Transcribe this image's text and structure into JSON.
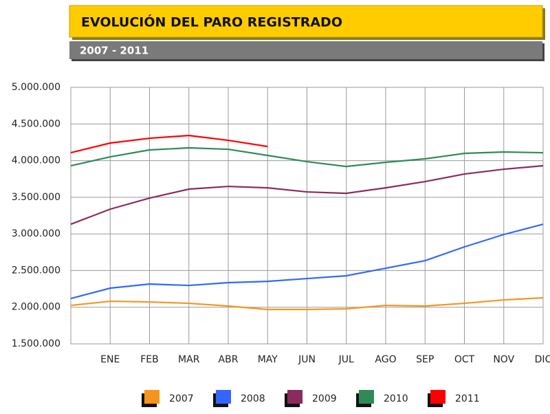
{
  "chart_data": {
    "type": "line",
    "title": "EVOLUCIÓN DEL PARO REGISTRADO",
    "subtitle": "2007 - 2011",
    "categories": [
      null,
      "ENE",
      "FEB",
      "MAR",
      "ABR",
      "MAY",
      "JUN",
      "JUL",
      "AGO",
      "SEP",
      "OCT",
      "NOV",
      "DIC"
    ],
    "series": [
      {
        "name": "2007",
        "color": "#f7941d",
        "values": [
          2025000,
          2081000,
          2072000,
          2053000,
          2016000,
          1969000,
          1969000,
          1978000,
          2025000,
          2016000,
          2053000,
          2100000,
          2128000
        ]
      },
      {
        "name": "2008",
        "color": "#3366ff",
        "values": [
          2119000,
          2260000,
          2316000,
          2297000,
          2335000,
          2353000,
          2391000,
          2429000,
          2532000,
          2635000,
          2823000,
          2992000,
          3132000
        ]
      },
      {
        "name": "2009",
        "color": "#8b2a5e",
        "values": [
          3132000,
          3338000,
          3489000,
          3611000,
          3648000,
          3629000,
          3573000,
          3554000,
          3629000,
          3714000,
          3817000,
          3883000,
          3930000
        ]
      },
      {
        "name": "2010",
        "color": "#2e8b57",
        "values": [
          3930000,
          4052000,
          4146000,
          4174000,
          4155000,
          4071000,
          3986000,
          3920000,
          3977000,
          4024000,
          4099000,
          4118000,
          4108000
        ]
      },
      {
        "name": "2011",
        "color": "#ff0000",
        "values": [
          4108000,
          4240000,
          4305000,
          4343000,
          4277000,
          4193000,
          null,
          null,
          null,
          null,
          null,
          null,
          null
        ]
      }
    ],
    "ylim": [
      1500000,
      5000000
    ],
    "yticks": [
      {
        "value": 1500000,
        "label": "1.500.000"
      },
      {
        "value": 2000000,
        "label": "2.000.000"
      },
      {
        "value": 2500000,
        "label": "2.500.000"
      },
      {
        "value": 3000000,
        "label": "3.000.000"
      },
      {
        "value": 3500000,
        "label": "3.500.000"
      },
      {
        "value": 4000000,
        "label": "4.000.000"
      },
      {
        "value": 4500000,
        "label": "4.500.000"
      },
      {
        "value": 5000000,
        "label": "5.000.000"
      }
    ],
    "grid": true
  }
}
